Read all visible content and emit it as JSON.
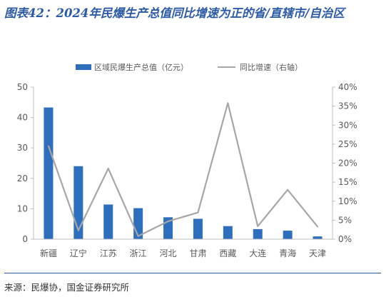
{
  "title": "图表42：2024年民爆生产总值同比增速为正的省/直辖市/自治区",
  "source": "来源：民爆协，国金证券研究所",
  "colors": {
    "bar": "#2e6fbd",
    "line": "#a6a6a6",
    "title": "#2b5aa6",
    "axis": "#bfbfbf"
  },
  "chart_data": {
    "type": "bar",
    "categories": [
      "新疆",
      "辽宁",
      "江苏",
      "浙江",
      "河北",
      "甘肃",
      "西藏",
      "大连",
      "青海",
      "天津"
    ],
    "series": [
      {
        "name": "区域民爆生产总值（亿元）",
        "type": "bar",
        "axis": "left",
        "values": [
          43.3,
          24.0,
          11.4,
          10.2,
          7.2,
          6.7,
          4.3,
          3.3,
          2.8,
          0.9
        ]
      },
      {
        "name": "同比增速（右轴）",
        "type": "line",
        "axis": "right",
        "values": [
          24.5,
          2.3,
          18.6,
          0.8,
          4.7,
          7.0,
          35.8,
          3.4,
          13.0,
          3.3
        ]
      }
    ],
    "ylim": [
      0,
      50
    ],
    "yticks": [
      "0",
      "10",
      "20",
      "30",
      "40",
      "50"
    ],
    "y2lim": [
      0,
      40
    ],
    "y2ticks": [
      "0%",
      "5%",
      "10%",
      "15%",
      "20%",
      "25%",
      "30%",
      "35%",
      "40%"
    ],
    "grid": false,
    "legend_position": "top-center"
  }
}
